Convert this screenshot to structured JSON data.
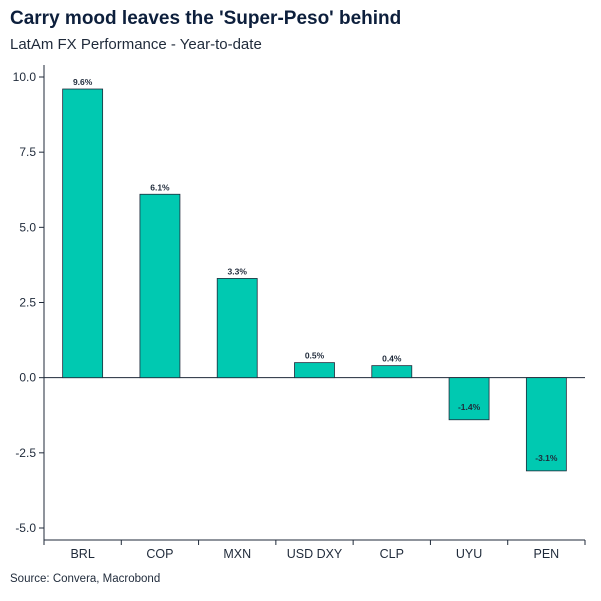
{
  "header": {
    "title": "Carry mood leaves the 'Super-Peso' behind",
    "subtitle": "LatAm FX Performance - Year-to-date"
  },
  "footer": {
    "source": "Source: Convera, Macrobond"
  },
  "chart_data": {
    "type": "bar",
    "categories": [
      "BRL",
      "COP",
      "MXN",
      "USD DXY",
      "CLP",
      "UYU",
      "PEN"
    ],
    "values": [
      9.6,
      6.1,
      3.3,
      0.5,
      0.4,
      -1.4,
      -3.1
    ],
    "data_labels": [
      "9.6%",
      "6.1%",
      "3.3%",
      "0.5%",
      "0.4%",
      "-1.4%",
      "-3.1%"
    ],
    "ylim": [
      -5.0,
      10.0
    ],
    "yticks": [
      10.0,
      7.5,
      5.0,
      2.5,
      0.0,
      -2.5,
      -5.0
    ],
    "ytick_labels": [
      "10.0",
      "7.5",
      "5.0",
      "2.5",
      "0.0",
      "-2.5",
      "-5.0"
    ],
    "xlabel": "",
    "ylabel": "",
    "grid": false,
    "colors": {
      "bar": "#00c9b1",
      "bar_edge": "#1f2a3a",
      "axis": "#1f2a3a"
    }
  }
}
